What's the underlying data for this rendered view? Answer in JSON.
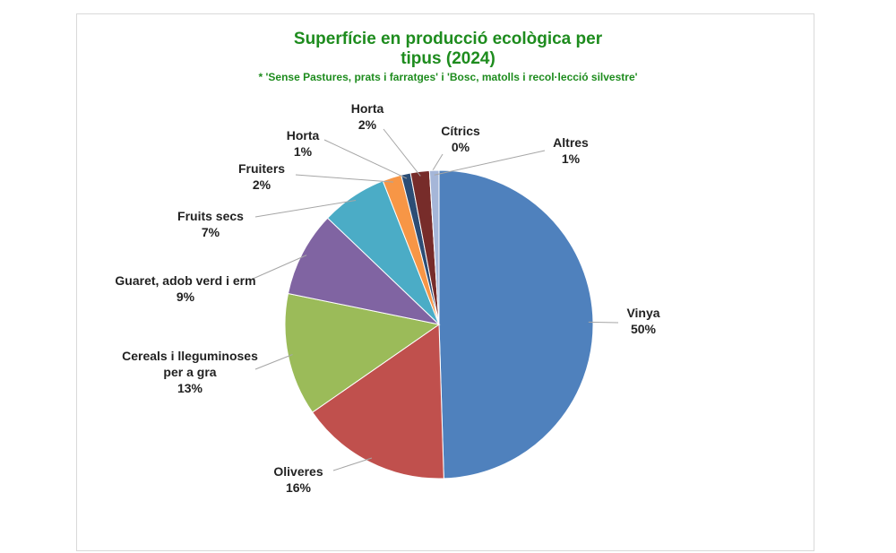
{
  "chart_data": {
    "type": "pie",
    "title": "Superfície en producció ecològica per tipus (2024)",
    "subtitle": "* 'Sense Pastures, prats i farratges' i 'Bosc, matolls i recol·lecció silvestre'",
    "categories": [
      "Vinya",
      "Oliveres",
      "Cereals i lleguminoses per a gra",
      "Guaret, adob verd i erm",
      "Fruits secs",
      "Fruiters",
      "Horta",
      "Horta",
      "Cítrics",
      "Altres"
    ],
    "values": [
      50,
      16,
      13,
      9,
      7,
      2,
      1,
      2,
      0,
      1
    ],
    "value_labels": [
      "50%",
      "16%",
      "13%",
      "9%",
      "7%",
      "2%",
      "1%",
      "2%",
      "0%",
      "1%"
    ],
    "colors": [
      "#4f81bd",
      "#c0504d",
      "#9bbb59",
      "#8064a2",
      "#4bacc6",
      "#f79646",
      "#2c4d75",
      "#772c2a",
      "#5f7530",
      "#a5b6d8"
    ]
  }
}
